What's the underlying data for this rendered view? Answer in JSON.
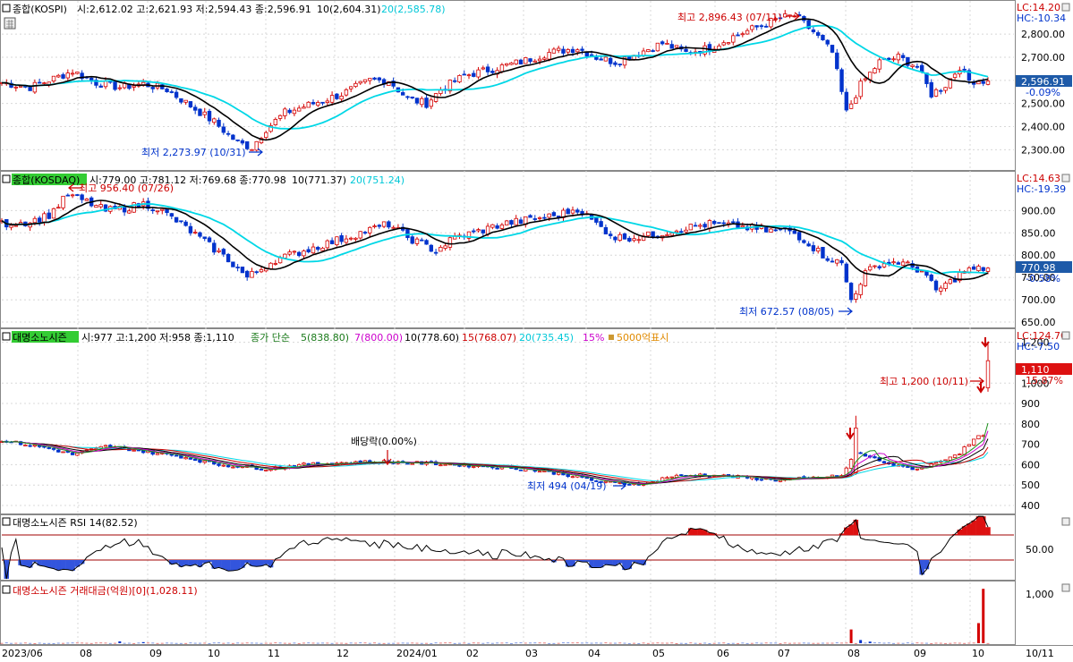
{
  "colors": {
    "up": "#d40000",
    "down": "#0033cc",
    "ma10": "#000000",
    "ma20": "#00d7e6",
    "ma5": "#1a8f1a",
    "ma7": "#cc00cc",
    "ma15": "#cc0000",
    "rsi_band": "#a00000"
  },
  "x_axis": {
    "ticks": [
      "2023/06",
      "08",
      "09",
      "10",
      "11",
      "12",
      "2024/01",
      "02",
      "03",
      "04",
      "05",
      "06",
      "07",
      "08",
      "09",
      "10",
      "10/11"
    ]
  },
  "panels": {
    "kospi": {
      "header": {
        "name": "종합(KOSPI)",
        "ohlc": "시:2,612.02 고:2,621.93 저:2,594.43 종:2,596.91",
        "ma10": "10(2,604.31)",
        "ma20": "20(2,585.78)"
      },
      "lc": "LC:14.20",
      "hc": "HC:-10.34",
      "last_price": "2,596.91",
      "last_change": "-0.09%",
      "y_ticks": [
        "2,800.00",
        "2,700.00",
        "2,600.00",
        "2,500.00",
        "2,400.00",
        "2,300.00"
      ],
      "high_note": "최고 2,896.43 (07/11)",
      "low_note": "최저 2,273.97 (10/31)"
    },
    "kosdaq": {
      "header": {
        "name": "종합(KOSDAQ)",
        "ohlc": "시:779.00 고:781.12 저:769.68 종:770.98",
        "ma10": "10(771.37)",
        "ma20": "20(751.24)"
      },
      "lc": "LC:14.63",
      "hc": "HC:-19.39",
      "last_price": "770.98",
      "last_change": "-0.58%",
      "y_ticks": [
        "900.00",
        "850.00",
        "800.00",
        "750.00",
        "700.00",
        "650.00"
      ],
      "high_note": "최고 956.40 (07/26)",
      "low_note": "최저 672.57 (08/05)"
    },
    "stock": {
      "header": {
        "name": "대명소노시즌",
        "ohlc": "시:977 고:1,200 저:958 종:1,110",
        "ma_label": "종가 단순",
        "ma5": "5(838.80)",
        "ma7": "7(800.00)",
        "ma10": "10(778.60)",
        "ma15": "15(768.07)",
        "ma20": "20(735.45)",
        "pct": "15%",
        "marker": "5000억표시"
      },
      "lc": "LC:124.70",
      "hc": "HC:-7.50",
      "last_price": "1,110",
      "last_change": "15.87%",
      "y_ticks": [
        "1,200",
        "1,000",
        "900",
        "800",
        "700",
        "600",
        "500",
        "400"
      ],
      "high_note": "최고 1,200 (10/11)",
      "low_note": "최저 494 (04/19)",
      "dividend_note": "배당락(0.00%)"
    },
    "rsi": {
      "header": "대명소노시즌 RSI 14(82.52)",
      "y_tick": "50.00"
    },
    "amount": {
      "header": "대명소노시즌 거래대금(억원)[0](1,028.11)",
      "y_tick": "1,000"
    }
  },
  "chart_data": [
    {
      "type": "candlestick",
      "title": "종합(KOSPI)",
      "series": [
        {
          "name": "종합(KOSPI)",
          "anchors": [
            [
              0,
              2590
            ],
            [
              6,
              2570
            ],
            [
              10,
              2600
            ],
            [
              15,
              2640
            ],
            [
              20,
              2590
            ],
            [
              25,
              2570
            ],
            [
              30,
              2585
            ],
            [
              35,
              2560
            ],
            [
              40,
              2490
            ],
            [
              45,
              2420
            ],
            [
              50,
              2330
            ],
            [
              53,
              2310
            ],
            [
              56,
              2390
            ],
            [
              60,
              2460
            ],
            [
              66,
              2500
            ],
            [
              72,
              2540
            ],
            [
              78,
              2600
            ],
            [
              82,
              2600
            ],
            [
              86,
              2520
            ],
            [
              90,
              2500
            ],
            [
              93,
              2560
            ],
            [
              98,
              2620
            ],
            [
              104,
              2650
            ],
            [
              110,
              2680
            ],
            [
              116,
              2720
            ],
            [
              122,
              2740
            ],
            [
              126,
              2700
            ],
            [
              130,
              2680
            ],
            [
              135,
              2720
            ],
            [
              140,
              2760
            ],
            [
              145,
              2720
            ],
            [
              150,
              2740
            ],
            [
              155,
              2790
            ],
            [
              160,
              2830
            ],
            [
              165,
              2870
            ],
            [
              168,
              2880
            ],
            [
              172,
              2810
            ],
            [
              176,
              2720
            ],
            [
              179,
              2460
            ],
            [
              182,
              2580
            ],
            [
              186,
              2680
            ],
            [
              190,
              2700
            ],
            [
              194,
              2660
            ],
            [
              197,
              2540
            ],
            [
              200,
              2580
            ],
            [
              203,
              2660
            ],
            [
              205,
              2600
            ],
            [
              209,
              2597
            ]
          ]
        },
        {
          "name": "10",
          "values": "10-day simple moving average of close"
        },
        {
          "name": "20",
          "values": "20-day simple moving average of close"
        }
      ],
      "ylim": [
        2220,
        2940
      ]
    },
    {
      "type": "candlestick",
      "title": "종합(KOSDAQ)",
      "series": [
        {
          "name": "종합(KOSDAQ)",
          "anchors": [
            [
              0,
              870
            ],
            [
              6,
              875
            ],
            [
              10,
              890
            ],
            [
              14,
              935
            ],
            [
              18,
              920
            ],
            [
              22,
              900
            ],
            [
              26,
              905
            ],
            [
              30,
              915
            ],
            [
              33,
              905
            ],
            [
              38,
              870
            ],
            [
              43,
              830
            ],
            [
              48,
              790
            ],
            [
              52,
              750
            ],
            [
              55,
              770
            ],
            [
              58,
              790
            ],
            [
              64,
              810
            ],
            [
              70,
              830
            ],
            [
              76,
              850
            ],
            [
              82,
              870
            ],
            [
              86,
              840
            ],
            [
              92,
              810
            ],
            [
              96,
              840
            ],
            [
              100,
              850
            ],
            [
              106,
              870
            ],
            [
              112,
              880
            ],
            [
              118,
              890
            ],
            [
              122,
              905
            ],
            [
              126,
              870
            ],
            [
              130,
              840
            ],
            [
              134,
              840
            ],
            [
              138,
              845
            ],
            [
              144,
              860
            ],
            [
              150,
              870
            ],
            [
              156,
              865
            ],
            [
              162,
              855
            ],
            [
              167,
              855
            ],
            [
              170,
              835
            ],
            [
              174,
              800
            ],
            [
              178,
              780
            ],
            [
              180,
              700
            ],
            [
              183,
              760
            ],
            [
              186,
              780
            ],
            [
              190,
              785
            ],
            [
              195,
              765
            ],
            [
              198,
              720
            ],
            [
              201,
              740
            ],
            [
              204,
              765
            ],
            [
              209,
              771
            ]
          ]
        },
        {
          "name": "10",
          "values": "10-day simple moving average of close"
        },
        {
          "name": "20",
          "values": "20-day simple moving average of close"
        }
      ],
      "ylim": [
        640,
        985
      ]
    },
    {
      "type": "candlestick",
      "title": "대명소노시즌",
      "series": [
        {
          "name": "대명소노시즌",
          "anchors": [
            [
              0,
              720
            ],
            [
              10,
              680
            ],
            [
              15,
              650
            ],
            [
              22,
              690
            ],
            [
              26,
              680
            ],
            [
              30,
              665
            ],
            [
              38,
              640
            ],
            [
              46,
              600
            ],
            [
              56,
              580
            ],
            [
              64,
              600
            ],
            [
              72,
              610
            ],
            [
              80,
              615
            ],
            [
              86,
              610
            ],
            [
              92,
              605
            ],
            [
              100,
              595
            ],
            [
              108,
              585
            ],
            [
              114,
              570
            ],
            [
              120,
              550
            ],
            [
              127,
              515
            ],
            [
              133,
              505
            ],
            [
              137,
              510
            ],
            [
              141,
              540
            ],
            [
              148,
              550
            ],
            [
              156,
              540
            ],
            [
              164,
              525
            ],
            [
              172,
              535
            ],
            [
              178,
              545
            ],
            [
              181,
              660
            ],
            [
              186,
              620
            ],
            [
              190,
              590
            ],
            [
              194,
              580
            ],
            [
              198,
              610
            ],
            [
              203,
              660
            ],
            [
              206,
              720
            ],
            [
              208,
              750
            ],
            [
              209,
              1110
            ]
          ]
        },
        {
          "name": "5",
          "values": "5-day simple moving average of close"
        },
        {
          "name": "7",
          "values": "7-day simple moving average of close"
        },
        {
          "name": "10",
          "values": "10-day simple moving average of close"
        },
        {
          "name": "15",
          "values": "15-day simple moving average of close"
        },
        {
          "name": "20",
          "values": "20-day simple moving average of close"
        }
      ],
      "ylim": [
        365,
        1260
      ]
    },
    {
      "type": "line",
      "title": "대명소노시즌 RSI 14(82.52)",
      "series": [
        {
          "name": "RSI 14",
          "values": "14-day RSI of 대명소노시즌 close, last 82.52"
        }
      ],
      "reference_lines": [
        70,
        30
      ],
      "ylim": [
        0,
        100
      ]
    },
    {
      "type": "bar",
      "title": "대명소노시즌 거래대금(억원)[0](1,028.11)",
      "series": [
        {
          "name": "거래대금(억원)",
          "spikes": [
            [
              25,
              35
            ],
            [
              30,
              20
            ],
            [
              180,
              260
            ],
            [
              182,
              60
            ],
            [
              184,
              30
            ],
            [
              207,
              380
            ],
            [
              208,
              1028.11
            ]
          ]
        }
      ],
      "ylim": [
        0,
        1150
      ]
    }
  ]
}
